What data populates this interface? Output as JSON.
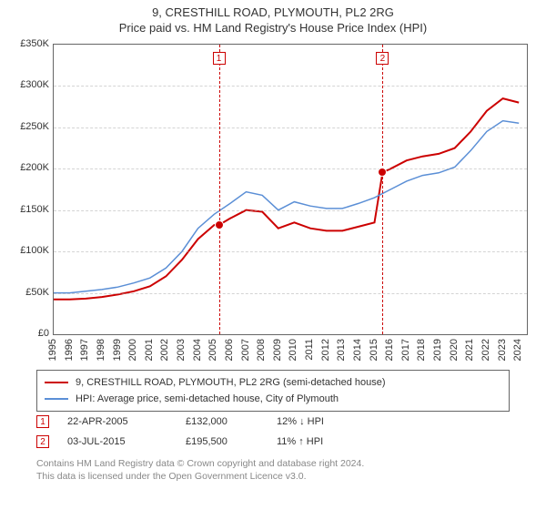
{
  "title_line1": "9, CRESTHILL ROAD, PLYMOUTH, PL2 2RG",
  "title_line2": "Price paid vs. HM Land Registry's House Price Index (HPI)",
  "chart": {
    "type": "line",
    "background_color": "#ffffff",
    "grid_color": "#aaaaaa",
    "border_color": "#666666",
    "xlim": [
      1995,
      2024.5
    ],
    "ylim": [
      0,
      350000
    ],
    "ytick_step": 50000,
    "ytick_prefix": "£",
    "ytick_suffix": "K",
    "yticks": [
      {
        "v": 0,
        "label": "£0"
      },
      {
        "v": 50000,
        "label": "£50K"
      },
      {
        "v": 100000,
        "label": "£100K"
      },
      {
        "v": 150000,
        "label": "£150K"
      },
      {
        "v": 200000,
        "label": "£200K"
      },
      {
        "v": 250000,
        "label": "£250K"
      },
      {
        "v": 300000,
        "label": "£300K"
      },
      {
        "v": 350000,
        "label": "£350K"
      }
    ],
    "xticks": [
      1995,
      1996,
      1997,
      1998,
      1999,
      2000,
      2001,
      2002,
      2003,
      2004,
      2005,
      2006,
      2007,
      2008,
      2009,
      2010,
      2011,
      2012,
      2013,
      2014,
      2015,
      2016,
      2017,
      2018,
      2019,
      2020,
      2021,
      2022,
      2023,
      2024
    ],
    "series": [
      {
        "name": "price_paid",
        "label": "9, CRESTHILL ROAD, PLYMOUTH, PL2 2RG (semi-detached house)",
        "color": "#cc0000",
        "line_width": 2,
        "points": [
          [
            1995,
            42000
          ],
          [
            1996,
            42000
          ],
          [
            1997,
            43000
          ],
          [
            1998,
            45000
          ],
          [
            1999,
            48000
          ],
          [
            2000,
            52000
          ],
          [
            2001,
            58000
          ],
          [
            2002,
            70000
          ],
          [
            2003,
            90000
          ],
          [
            2004,
            115000
          ],
          [
            2005,
            132000
          ],
          [
            2005.3,
            132000
          ],
          [
            2006,
            140000
          ],
          [
            2007,
            150000
          ],
          [
            2008,
            148000
          ],
          [
            2009,
            128000
          ],
          [
            2010,
            135000
          ],
          [
            2011,
            128000
          ],
          [
            2012,
            125000
          ],
          [
            2013,
            125000
          ],
          [
            2014,
            130000
          ],
          [
            2015,
            135000
          ],
          [
            2015.5,
            195500
          ],
          [
            2016,
            200000
          ],
          [
            2017,
            210000
          ],
          [
            2018,
            215000
          ],
          [
            2019,
            218000
          ],
          [
            2020,
            225000
          ],
          [
            2021,
            245000
          ],
          [
            2022,
            270000
          ],
          [
            2023,
            285000
          ],
          [
            2024,
            280000
          ]
        ]
      },
      {
        "name": "hpi",
        "label": "HPI: Average price, semi-detached house, City of Plymouth",
        "color": "#5b8fd6",
        "line_width": 1.5,
        "points": [
          [
            1995,
            50000
          ],
          [
            1996,
            50000
          ],
          [
            1997,
            52000
          ],
          [
            1998,
            54000
          ],
          [
            1999,
            57000
          ],
          [
            2000,
            62000
          ],
          [
            2001,
            68000
          ],
          [
            2002,
            80000
          ],
          [
            2003,
            100000
          ],
          [
            2004,
            128000
          ],
          [
            2005,
            145000
          ],
          [
            2006,
            158000
          ],
          [
            2007,
            172000
          ],
          [
            2008,
            168000
          ],
          [
            2009,
            150000
          ],
          [
            2010,
            160000
          ],
          [
            2011,
            155000
          ],
          [
            2012,
            152000
          ],
          [
            2013,
            152000
          ],
          [
            2014,
            158000
          ],
          [
            2015,
            165000
          ],
          [
            2016,
            175000
          ],
          [
            2017,
            185000
          ],
          [
            2018,
            192000
          ],
          [
            2019,
            195000
          ],
          [
            2020,
            202000
          ],
          [
            2021,
            222000
          ],
          [
            2022,
            245000
          ],
          [
            2023,
            258000
          ],
          [
            2024,
            255000
          ]
        ]
      }
    ],
    "markers": [
      {
        "n": "1",
        "x": 2005.3,
        "y": 132000,
        "color": "#cc0000"
      },
      {
        "n": "2",
        "x": 2015.5,
        "y": 195500,
        "color": "#cc0000"
      }
    ],
    "axis_fontsize": 11,
    "title_fontsize": 13
  },
  "legend": {
    "items": [
      {
        "color": "#cc0000",
        "label": "9, CRESTHILL ROAD, PLYMOUTH, PL2 2RG (semi-detached house)"
      },
      {
        "color": "#5b8fd6",
        "label": "HPI: Average price, semi-detached house, City of Plymouth"
      }
    ]
  },
  "transactions": [
    {
      "n": "1",
      "date": "22-APR-2005",
      "price": "£132,000",
      "diff": "12% ↓ HPI"
    },
    {
      "n": "2",
      "date": "03-JUL-2015",
      "price": "£195,500",
      "diff": "11% ↑ HPI"
    }
  ],
  "footer_line1": "Contains HM Land Registry data © Crown copyright and database right 2024.",
  "footer_line2": "This data is licensed under the Open Government Licence v3.0."
}
